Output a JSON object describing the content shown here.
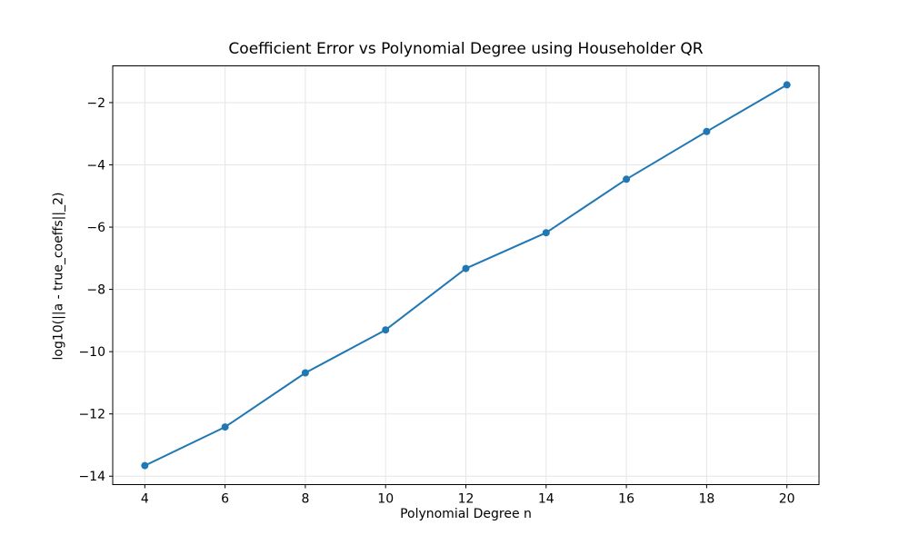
{
  "chart_data": {
    "type": "line",
    "title": "Coefficient Error vs Polynomial Degree using Householder QR",
    "xlabel": "Polynomial Degree n",
    "ylabel": "log10(||a - true_coeffs||_2)",
    "x": [
      4,
      6,
      8,
      10,
      12,
      14,
      16,
      18,
      20
    ],
    "y": [
      -13.66,
      -12.42,
      -10.68,
      -9.3,
      -7.33,
      -6.18,
      -4.46,
      -2.93,
      -1.43
    ],
    "xlim": [
      3.2,
      20.8
    ],
    "ylim": [
      -14.27,
      -0.82
    ],
    "xticks": {
      "values": [
        4,
        6,
        8,
        10,
        12,
        14,
        16,
        18,
        20
      ],
      "labels": [
        "4",
        "6",
        "8",
        "10",
        "12",
        "14",
        "16",
        "18",
        "20"
      ]
    },
    "yticks": {
      "values": [
        -14,
        -12,
        -10,
        -8,
        -6,
        -4,
        -2
      ],
      "labels": [
        "−14",
        "−12",
        "−10",
        "−8",
        "−6",
        "−4",
        "−2"
      ]
    },
    "grid": true,
    "legend": "none",
    "marker": "o",
    "colors": {
      "line": "#1f77b4",
      "marker": "#1f77b4",
      "grid": "#e6e6e6",
      "spine": "#000000",
      "text": "#000000",
      "background": "#ffffff"
    }
  }
}
